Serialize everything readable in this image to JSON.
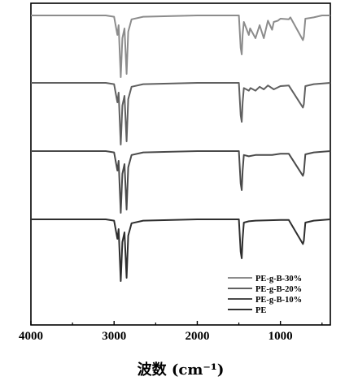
{
  "chart_data": {
    "type": "line",
    "title": "",
    "xlabel": "波数 (cm⁻¹)",
    "ylabel": "",
    "xlim": [
      4000,
      400
    ],
    "x_reversed": true,
    "ticks": [
      4000,
      3000,
      2000,
      1000
    ],
    "tick_labels": [
      "4000",
      "3000",
      "2000",
      "1000"
    ],
    "y_axis_values_shown": false,
    "grid": false,
    "legend_position": "bottom-right",
    "series": [
      {
        "name": "PE-g-B-30%",
        "color": "#8c8c8c",
        "baseline_offset": 3,
        "points": [
          [
            4000,
            0.0
          ],
          [
            3100,
            0.0
          ],
          [
            3000,
            -0.02
          ],
          [
            2960,
            -0.3
          ],
          [
            2945,
            -0.15
          ],
          [
            2920,
            -0.95
          ],
          [
            2900,
            -0.35
          ],
          [
            2875,
            -0.2
          ],
          [
            2850,
            -0.9
          ],
          [
            2830,
            -0.25
          ],
          [
            2790,
            -0.06
          ],
          [
            2650,
            -0.02
          ],
          [
            2000,
            0.0
          ],
          [
            1500,
            0.0
          ],
          [
            1478,
            -0.5
          ],
          [
            1465,
            -0.6
          ],
          [
            1455,
            -0.3
          ],
          [
            1440,
            -0.1
          ],
          [
            1380,
            -0.3
          ],
          [
            1365,
            -0.2
          ],
          [
            1300,
            -0.35
          ],
          [
            1250,
            -0.15
          ],
          [
            1200,
            -0.35
          ],
          [
            1150,
            -0.08
          ],
          [
            1100,
            -0.22
          ],
          [
            1080,
            -0.1
          ],
          [
            1030,
            -0.08
          ],
          [
            1000,
            -0.05
          ],
          [
            900,
            -0.06
          ],
          [
            880,
            -0.03
          ],
          [
            730,
            -0.38
          ],
          [
            719,
            -0.33
          ],
          [
            700,
            -0.05
          ],
          [
            600,
            -0.03
          ],
          [
            500,
            0.0
          ],
          [
            400,
            0.0
          ]
        ]
      },
      {
        "name": "PE-g-B-20%",
        "color": "#606060",
        "baseline_offset": 2,
        "points": [
          [
            4000,
            0.0
          ],
          [
            3100,
            0.0
          ],
          [
            3000,
            -0.02
          ],
          [
            2960,
            -0.3
          ],
          [
            2945,
            -0.15
          ],
          [
            2920,
            -0.95
          ],
          [
            2900,
            -0.35
          ],
          [
            2875,
            -0.2
          ],
          [
            2850,
            -0.9
          ],
          [
            2830,
            -0.25
          ],
          [
            2790,
            -0.06
          ],
          [
            2650,
            -0.02
          ],
          [
            2000,
            0.0
          ],
          [
            1500,
            0.0
          ],
          [
            1478,
            -0.5
          ],
          [
            1465,
            -0.6
          ],
          [
            1455,
            -0.3
          ],
          [
            1440,
            -0.08
          ],
          [
            1380,
            -0.12
          ],
          [
            1360,
            -0.08
          ],
          [
            1300,
            -0.12
          ],
          [
            1250,
            -0.06
          ],
          [
            1200,
            -0.1
          ],
          [
            1150,
            -0.04
          ],
          [
            1080,
            -0.1
          ],
          [
            1000,
            -0.05
          ],
          [
            900,
            -0.04
          ],
          [
            730,
            -0.38
          ],
          [
            719,
            -0.33
          ],
          [
            700,
            -0.05
          ],
          [
            600,
            -0.02
          ],
          [
            400,
            0.0
          ]
        ]
      },
      {
        "name": "PE-g-B-10%",
        "color": "#4a4a4a",
        "baseline_offset": 1,
        "points": [
          [
            4000,
            0.0
          ],
          [
            3100,
            0.0
          ],
          [
            3000,
            -0.02
          ],
          [
            2960,
            -0.3
          ],
          [
            2945,
            -0.15
          ],
          [
            2920,
            -0.95
          ],
          [
            2900,
            -0.35
          ],
          [
            2875,
            -0.2
          ],
          [
            2850,
            -0.9
          ],
          [
            2830,
            -0.25
          ],
          [
            2790,
            -0.06
          ],
          [
            2650,
            -0.02
          ],
          [
            2000,
            0.0
          ],
          [
            1500,
            0.0
          ],
          [
            1478,
            -0.5
          ],
          [
            1465,
            -0.6
          ],
          [
            1455,
            -0.3
          ],
          [
            1440,
            -0.06
          ],
          [
            1380,
            -0.08
          ],
          [
            1300,
            -0.06
          ],
          [
            1200,
            -0.06
          ],
          [
            1100,
            -0.06
          ],
          [
            1000,
            -0.04
          ],
          [
            900,
            -0.04
          ],
          [
            730,
            -0.38
          ],
          [
            719,
            -0.33
          ],
          [
            700,
            -0.05
          ],
          [
            600,
            -0.02
          ],
          [
            400,
            0.0
          ]
        ]
      },
      {
        "name": "PE",
        "color": "#2e2e2e",
        "baseline_offset": 0,
        "points": [
          [
            4000,
            0.0
          ],
          [
            3100,
            0.0
          ],
          [
            3000,
            -0.02
          ],
          [
            2960,
            -0.3
          ],
          [
            2945,
            -0.15
          ],
          [
            2920,
            -0.95
          ],
          [
            2900,
            -0.35
          ],
          [
            2875,
            -0.2
          ],
          [
            2850,
            -0.9
          ],
          [
            2830,
            -0.25
          ],
          [
            2790,
            -0.06
          ],
          [
            2650,
            -0.02
          ],
          [
            2000,
            0.0
          ],
          [
            1500,
            0.0
          ],
          [
            1478,
            -0.5
          ],
          [
            1465,
            -0.6
          ],
          [
            1455,
            -0.3
          ],
          [
            1440,
            -0.05
          ],
          [
            1380,
            -0.03
          ],
          [
            1300,
            -0.02
          ],
          [
            1000,
            -0.01
          ],
          [
            900,
            -0.01
          ],
          [
            730,
            -0.38
          ],
          [
            719,
            -0.33
          ],
          [
            700,
            -0.05
          ],
          [
            600,
            -0.02
          ],
          [
            400,
            0.0
          ]
        ]
      }
    ],
    "legend": [
      {
        "label": "PE-g-B-30%",
        "color": "#8c8c8c"
      },
      {
        "label": "PE-g-B-20%",
        "color": "#606060"
      },
      {
        "label": "PE-g-B-10%",
        "color": "#4a4a4a"
      },
      {
        "label": "PE",
        "color": "#2e2e2e"
      }
    ]
  }
}
